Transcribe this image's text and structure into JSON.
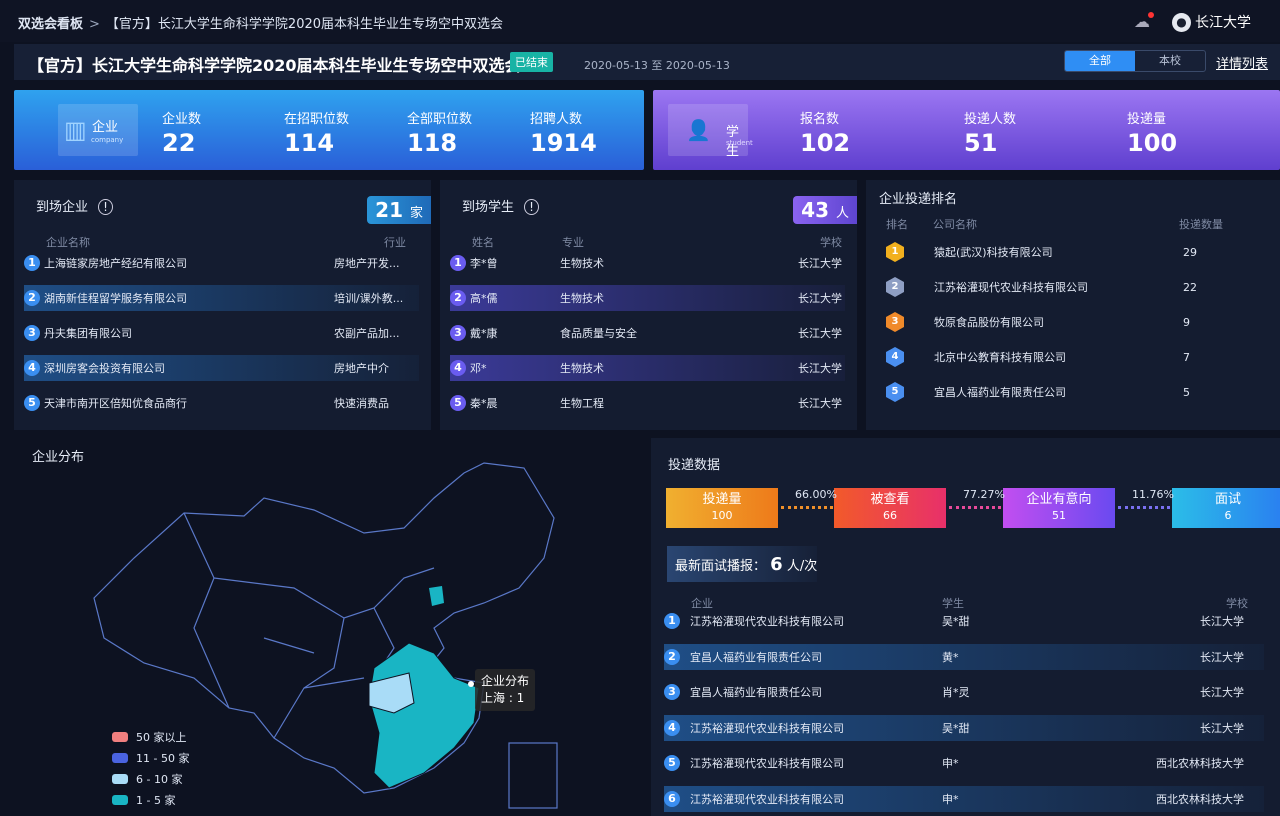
{
  "breadcrumb": {
    "root": "双选会看板",
    "current": "【官方】长江大学生命科学学院2020届本科生毕业生专场空中双选会"
  },
  "user": {
    "name": "长江大学",
    "icons": [
      "cloud-download-icon",
      "user-avatar-icon"
    ]
  },
  "header": {
    "title": "【官方】长江大学生命科学学院2020届本科生毕业生专场空中双选会",
    "status": "已结束",
    "date_range": "2020-05-13 至 2020-05-13",
    "scope_options": [
      "全部",
      "本校"
    ],
    "scope_selected": "全部",
    "detail_link": "详情列表"
  },
  "company_card": {
    "label": "企业",
    "sublabel": "company",
    "stats": [
      {
        "label": "企业数",
        "value": "22"
      },
      {
        "label": "在招职位数",
        "value": "114"
      },
      {
        "label": "全部职位数",
        "value": "118"
      },
      {
        "label": "招聘人数",
        "value": "1914"
      }
    ]
  },
  "student_card": {
    "label": "学生",
    "sublabel": "student",
    "stats": [
      {
        "label": "报名数",
        "value": "102"
      },
      {
        "label": "投递人数",
        "value": "51"
      },
      {
        "label": "投递量",
        "value": "100"
      }
    ]
  },
  "arrived_companies": {
    "title": "到场企业",
    "count": "21",
    "unit": "家",
    "columns": [
      "企业名称",
      "行业"
    ],
    "rows": [
      {
        "rank": "1",
        "name": "上海链家房地产经纪有限公司",
        "industry": "房地产开发..."
      },
      {
        "rank": "2",
        "name": "湖南新佳程留学服务有限公司",
        "industry": "培训/课外教..."
      },
      {
        "rank": "3",
        "name": "丹夫集团有限公司",
        "industry": "农副产品加..."
      },
      {
        "rank": "4",
        "name": "深圳房客会投资有限公司",
        "industry": "房地产中介"
      },
      {
        "rank": "5",
        "name": "天津市南开区倍知优食品商行",
        "industry": "快速消费品"
      }
    ]
  },
  "arrived_students": {
    "title": "到场学生",
    "count": "43",
    "unit": "人",
    "columns": [
      "姓名",
      "专业",
      "学校"
    ],
    "rows": [
      {
        "rank": "1",
        "name": "李*曾",
        "major": "生物技术",
        "school": "长江大学"
      },
      {
        "rank": "2",
        "name": "高*儒",
        "major": "生物技术",
        "school": "长江大学"
      },
      {
        "rank": "3",
        "name": "戴*康",
        "major": "食品质量与安全",
        "school": "长江大学"
      },
      {
        "rank": "4",
        "name": "邓*",
        "major": "生物技术",
        "school": "长江大学"
      },
      {
        "rank": "5",
        "name": "秦*晨",
        "major": "生物工程",
        "school": "长江大学"
      }
    ]
  },
  "ranking": {
    "title": "企业投递排名",
    "columns": [
      "排名",
      "公司名称",
      "投递数量"
    ],
    "rows": [
      {
        "rank": "1",
        "name": "猿起(武汉)科技有限公司",
        "count": "29",
        "color": "#f2b01e"
      },
      {
        "rank": "2",
        "name": "江苏裕灌现代农业科技有限公司",
        "count": "22",
        "color": "#8f9fc4"
      },
      {
        "rank": "3",
        "name": "牧原食品股份有限公司",
        "count": "9",
        "color": "#f08a2a"
      },
      {
        "rank": "4",
        "name": "北京中公教育科技有限公司",
        "count": "7",
        "color": "#4a8ff0"
      },
      {
        "rank": "5",
        "name": "宜昌人福药业有限责任公司",
        "count": "5",
        "color": "#4a8ff0"
      }
    ]
  },
  "map": {
    "title": "企业分布",
    "tooltip": {
      "title": "企业分布",
      "text": "上海 : 1"
    },
    "legend": [
      {
        "label": "50 家以上",
        "color": "#f07f7f"
      },
      {
        "label": "11 - 50 家",
        "color": "#4a63e0"
      },
      {
        "label": "6 - 10 家",
        "color": "#a9dcf7"
      },
      {
        "label": "1 - 5 家",
        "color": "#19b5c4"
      }
    ]
  },
  "delivery": {
    "title": "投递数据",
    "funnel": [
      {
        "label": "投递量",
        "value": "100",
        "from": "#f0b030",
        "to": "#ee7a1a"
      },
      {
        "label": "被查看",
        "value": "66",
        "from": "#f25a2a",
        "to": "#e8306a"
      },
      {
        "label": "企业有意向",
        "value": "51",
        "from": "#c24ef0",
        "to": "#6a4af0"
      },
      {
        "label": "面试",
        "value": "6",
        "from": "#2bbde8",
        "to": "#2a7ff0"
      }
    ],
    "rates": [
      "66.00%",
      "77.27%",
      "11.76%"
    ],
    "broadcast": {
      "label": "最新面试播报：",
      "value": "6",
      "unit": "人/次"
    },
    "columns": [
      "企业",
      "学生",
      "学校"
    ],
    "rows": [
      {
        "rank": "1",
        "company": "江苏裕灌现代农业科技有限公司",
        "student": "吴*甜",
        "school": "长江大学"
      },
      {
        "rank": "2",
        "company": "宜昌人福药业有限责任公司",
        "student": "黄*",
        "school": "长江大学"
      },
      {
        "rank": "3",
        "company": "宜昌人福药业有限责任公司",
        "student": "肖*灵",
        "school": "长江大学"
      },
      {
        "rank": "4",
        "company": "江苏裕灌现代农业科技有限公司",
        "student": "吴*甜",
        "school": "长江大学"
      },
      {
        "rank": "5",
        "company": "江苏裕灌现代农业科技有限公司",
        "student": "申*",
        "school": "西北农林科技大学"
      },
      {
        "rank": "6",
        "company": "江苏裕灌现代农业科技有限公司",
        "student": "申*",
        "school": "西北农林科技大学"
      }
    ]
  }
}
